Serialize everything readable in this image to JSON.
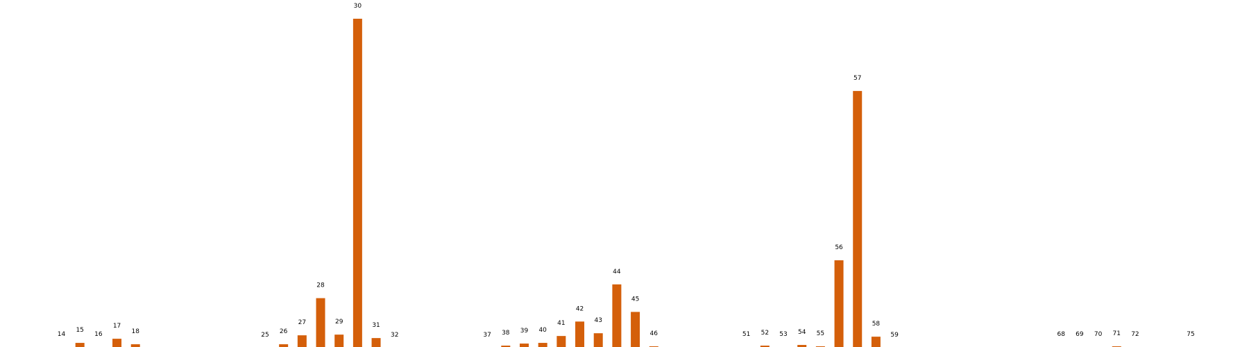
{
  "chart_data": {
    "type": "bar",
    "title": "",
    "xlabel": "",
    "ylabel": "",
    "grid": false,
    "legend": "none",
    "bar_color": "#d45f0a",
    "label_color": "#000000",
    "ylim": [
      0,
      481
    ],
    "categories": [
      "14",
      "15",
      "16",
      "17",
      "18",
      "25",
      "26",
      "27",
      "28",
      "29",
      "30",
      "31",
      "32",
      "37",
      "38",
      "39",
      "40",
      "41",
      "42",
      "43",
      "44",
      "45",
      "46",
      "51",
      "52",
      "53",
      "54",
      "55",
      "56",
      "57",
      "58",
      "59",
      "68",
      "69",
      "70",
      "71",
      "72",
      "75"
    ],
    "values": [
      1,
      7,
      1,
      13,
      5,
      0,
      5,
      18,
      72,
      19,
      478,
      14,
      0,
      0,
      3,
      6,
      7,
      17,
      38,
      21,
      92,
      52,
      2,
      1,
      3,
      1,
      4,
      2,
      127,
      373,
      16,
      0,
      1,
      1,
      1,
      2,
      1,
      1
    ]
  }
}
